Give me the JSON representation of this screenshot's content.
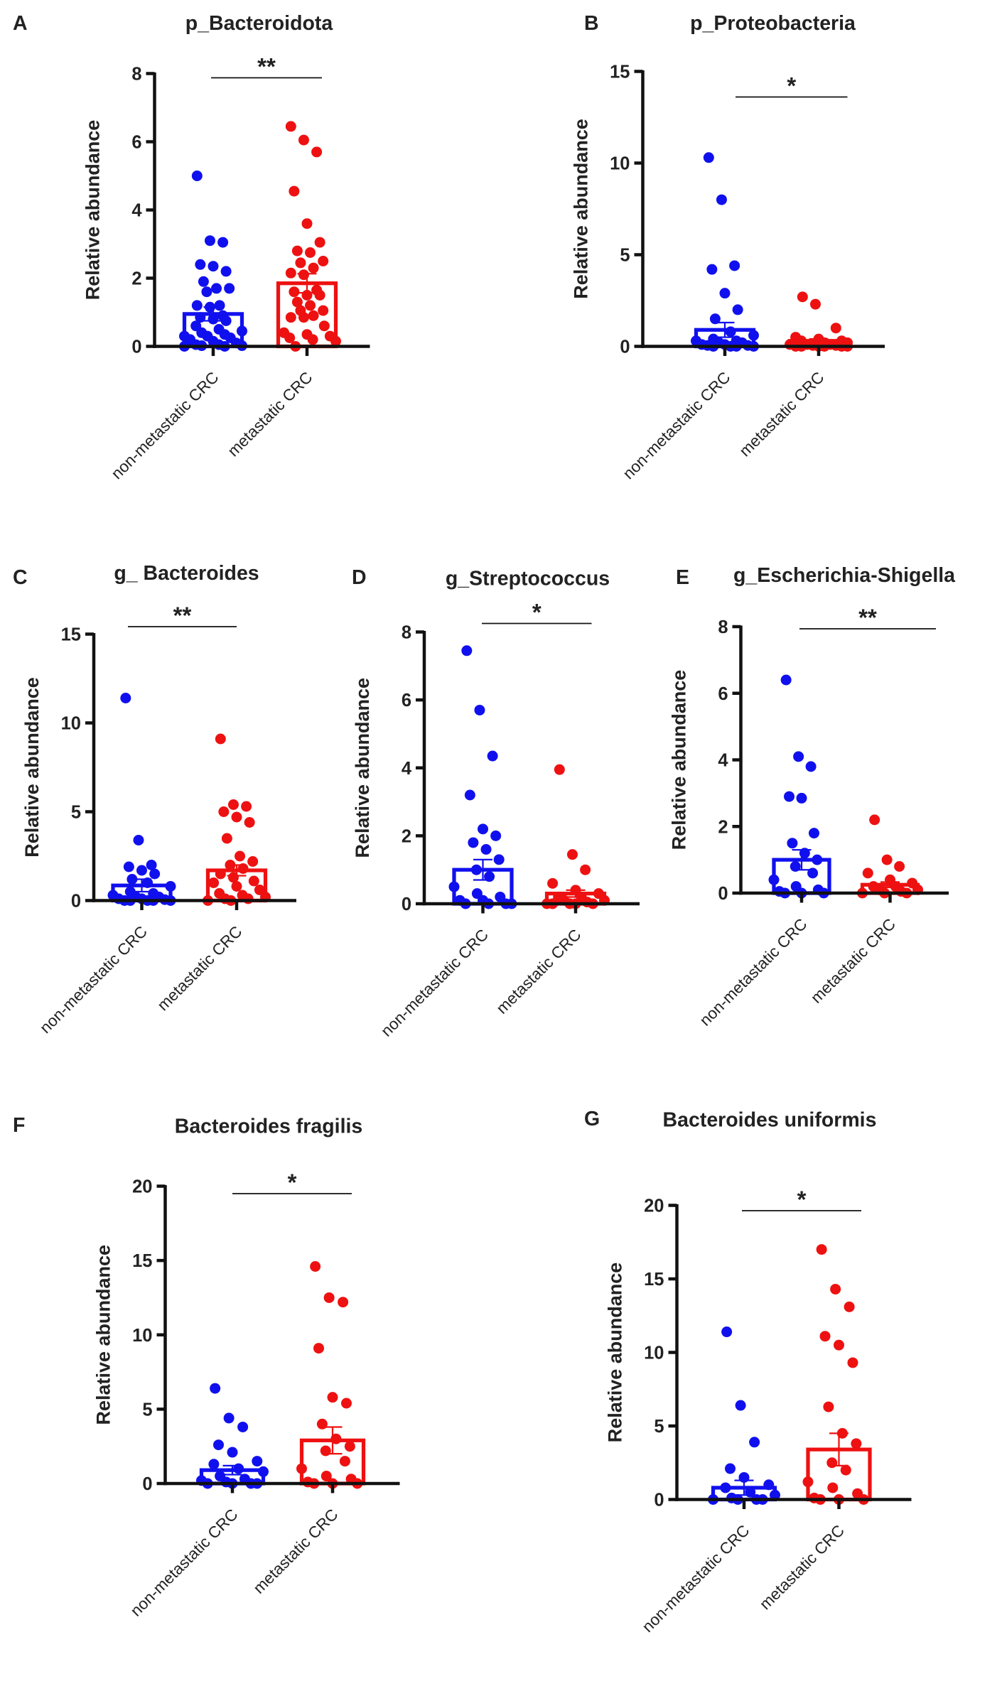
{
  "colors": {
    "non_metastatic": "#1010ee",
    "metastatic": "#ee1111",
    "axis": "#111111"
  },
  "chart_data": [
    {
      "panel": "A",
      "type": "bar",
      "title": "p_Bacteroidota",
      "ylabel": "Relative abundance",
      "categories": [
        "non-metastatic CRC",
        "metastatic CRC"
      ],
      "ylim": [
        0,
        8
      ],
      "yticks": [
        0,
        2,
        4,
        6,
        8
      ],
      "significance": "**",
      "series": [
        {
          "name": "non-metastatic CRC",
          "mean": 0.95,
          "sem": 0.2,
          "points": [
            5.0,
            3.1,
            3.05,
            2.4,
            2.35,
            2.2,
            1.9,
            1.7,
            1.7,
            1.6,
            1.2,
            1.2,
            1.15,
            0.9,
            0.85,
            0.8,
            0.75,
            0.6,
            0.5,
            0.45,
            0.4,
            0.35,
            0.3,
            0.3,
            0.25,
            0.2,
            0.15,
            0.1,
            0.05,
            0.05,
            0.02,
            0.02,
            0,
            0
          ]
        },
        {
          "name": "metastatic CRC",
          "mean": 1.85,
          "sem": 0.28,
          "points": [
            6.45,
            6.05,
            5.7,
            4.55,
            3.6,
            3.05,
            2.8,
            2.75,
            2.5,
            2.45,
            2.3,
            2.15,
            2.1,
            1.65,
            1.6,
            1.5,
            1.5,
            1.3,
            1.2,
            1.05,
            1.05,
            0.9,
            0.85,
            0.85,
            0.6,
            0.4,
            0.35,
            0.3,
            0.25,
            0.2,
            0.15,
            0
          ]
        }
      ]
    },
    {
      "panel": "B",
      "type": "bar",
      "title": "p_Proteobacteria",
      "ylabel": "Relative abundance",
      "categories": [
        "non-metastatic CRC",
        "metastatic CRC"
      ],
      "ylim": [
        0,
        15
      ],
      "yticks": [
        0,
        5,
        10,
        15
      ],
      "significance": "*",
      "series": [
        {
          "name": "non-metastatic CRC",
          "mean": 0.9,
          "sem": 0.4,
          "points": [
            10.3,
            8.0,
            4.4,
            4.2,
            2.9,
            2.0,
            1.5,
            0.8,
            0.6,
            0.4,
            0.3,
            0.3,
            0.2,
            0.2,
            0.1,
            0.1,
            0.05,
            0.05,
            0,
            0,
            0,
            0
          ]
        },
        {
          "name": "metastatic CRC",
          "mean": 0.3,
          "sem": 0.1,
          "points": [
            2.7,
            2.3,
            1.0,
            0.5,
            0.4,
            0.3,
            0.3,
            0.2,
            0.2,
            0.1,
            0.1,
            0.1,
            0.05,
            0.05,
            0,
            0,
            0,
            0,
            0,
            0
          ]
        }
      ]
    },
    {
      "panel": "C",
      "type": "bar",
      "title": "g_ Bacteroides",
      "ylabel": "Relative abundance",
      "categories": [
        "non-metastatic CRC",
        "metastatic CRC"
      ],
      "ylim": [
        0,
        15
      ],
      "yticks": [
        0,
        5,
        10,
        15
      ],
      "significance": "**",
      "series": [
        {
          "name": "non-metastatic CRC",
          "mean": 0.85,
          "sem": 0.35,
          "points": [
            11.4,
            3.4,
            2.0,
            1.9,
            1.7,
            1.5,
            1.2,
            1.0,
            0.8,
            0.5,
            0.4,
            0.3,
            0.2,
            0.2,
            0.1,
            0.1,
            0.05,
            0,
            0,
            0,
            0,
            0
          ]
        },
        {
          "name": "metastatic CRC",
          "mean": 1.7,
          "sem": 0.3,
          "points": [
            9.1,
            5.4,
            5.3,
            5.0,
            4.7,
            4.4,
            3.5,
            2.5,
            2.2,
            2.0,
            1.8,
            1.5,
            1.3,
            1.1,
            1.0,
            0.8,
            0.6,
            0.4,
            0.3,
            0.2,
            0.1,
            0.1,
            0,
            0
          ]
        }
      ]
    },
    {
      "panel": "D",
      "type": "bar",
      "title": "g_Streptococcus",
      "ylabel": "Relative abundance",
      "categories": [
        "non-metastatic CRC",
        "metastatic CRC"
      ],
      "ylim": [
        0,
        8
      ],
      "yticks": [
        0,
        2,
        4,
        6,
        8
      ],
      "significance": "*",
      "series": [
        {
          "name": "non-metastatic CRC",
          "mean": 1.0,
          "sem": 0.3,
          "points": [
            7.45,
            5.7,
            4.35,
            3.2,
            2.2,
            2.0,
            1.8,
            1.6,
            1.3,
            1.0,
            0.8,
            0.5,
            0.3,
            0.2,
            0.1,
            0.1,
            0,
            0,
            0,
            0
          ]
        },
        {
          "name": "metastatic CRC",
          "mean": 0.3,
          "sem": 0.1,
          "points": [
            3.95,
            1.45,
            1.0,
            0.6,
            0.4,
            0.3,
            0.2,
            0.2,
            0.1,
            0.1,
            0.05,
            0,
            0,
            0,
            0,
            0
          ]
        }
      ]
    },
    {
      "panel": "E",
      "type": "bar",
      "title": "g_Escherichia-Shigella",
      "ylabel": "Relative abundance",
      "categories": [
        "non-metastatic CRC",
        "metastatic CRC"
      ],
      "ylim": [
        0,
        8
      ],
      "yticks": [
        0,
        2,
        4,
        6,
        8
      ],
      "significance": "**",
      "series": [
        {
          "name": "non-metastatic CRC",
          "mean": 1.0,
          "sem": 0.3,
          "points": [
            6.4,
            4.1,
            3.8,
            2.9,
            2.85,
            1.8,
            1.5,
            1.2,
            1.0,
            0.8,
            0.6,
            0.4,
            0.2,
            0.1,
            0.05,
            0,
            0,
            0
          ]
        },
        {
          "name": "metastatic CRC",
          "mean": 0.25,
          "sem": 0.08,
          "points": [
            2.2,
            1.0,
            0.8,
            0.6,
            0.4,
            0.3,
            0.2,
            0.2,
            0.1,
            0.1,
            0.05,
            0,
            0,
            0
          ]
        }
      ]
    },
    {
      "panel": "F",
      "type": "bar",
      "title": "Bacteroides fragilis",
      "ylabel": "Relative abundance",
      "categories": [
        "non-metastatic CRC",
        "metastatic CRC"
      ],
      "ylim": [
        0,
        20
      ],
      "yticks": [
        0,
        5,
        10,
        15,
        20
      ],
      "significance": "*",
      "series": [
        {
          "name": "non-metastatic CRC",
          "mean": 0.9,
          "sem": 0.3,
          "points": [
            6.4,
            4.4,
            3.8,
            2.6,
            2.1,
            1.5,
            1.3,
            1.0,
            0.8,
            0.5,
            0.3,
            0.2,
            0.1,
            0,
            0,
            0,
            0
          ]
        },
        {
          "name": "metastatic CRC",
          "mean": 2.9,
          "sem": 0.9,
          "points": [
            14.6,
            12.5,
            12.2,
            9.1,
            5.8,
            5.4,
            4.0,
            3.0,
            2.5,
            2.2,
            1.5,
            1.0,
            0.5,
            0.3,
            0.1,
            0,
            0,
            0
          ]
        }
      ]
    },
    {
      "panel": "G",
      "type": "bar",
      "title": "Bacteroides uniformis",
      "ylabel": "Relative abundance",
      "categories": [
        "non-metastatic CRC",
        "metastatic CRC"
      ],
      "ylim": [
        0,
        20
      ],
      "yticks": [
        0,
        5,
        10,
        15,
        20
      ],
      "significance": "*",
      "series": [
        {
          "name": "non-metastatic CRC",
          "mean": 0.8,
          "sem": 0.5,
          "points": [
            11.4,
            6.4,
            3.9,
            2.1,
            1.5,
            1.0,
            0.8,
            0.5,
            0.3,
            0.1,
            0,
            0,
            0,
            0
          ]
        },
        {
          "name": "metastatic CRC",
          "mean": 3.4,
          "sem": 1.1,
          "points": [
            17.0,
            14.3,
            13.1,
            11.1,
            10.5,
            9.3,
            6.3,
            4.5,
            3.8,
            2.5,
            2.0,
            1.2,
            0.8,
            0.4,
            0.1,
            0,
            0,
            0
          ]
        }
      ]
    }
  ]
}
